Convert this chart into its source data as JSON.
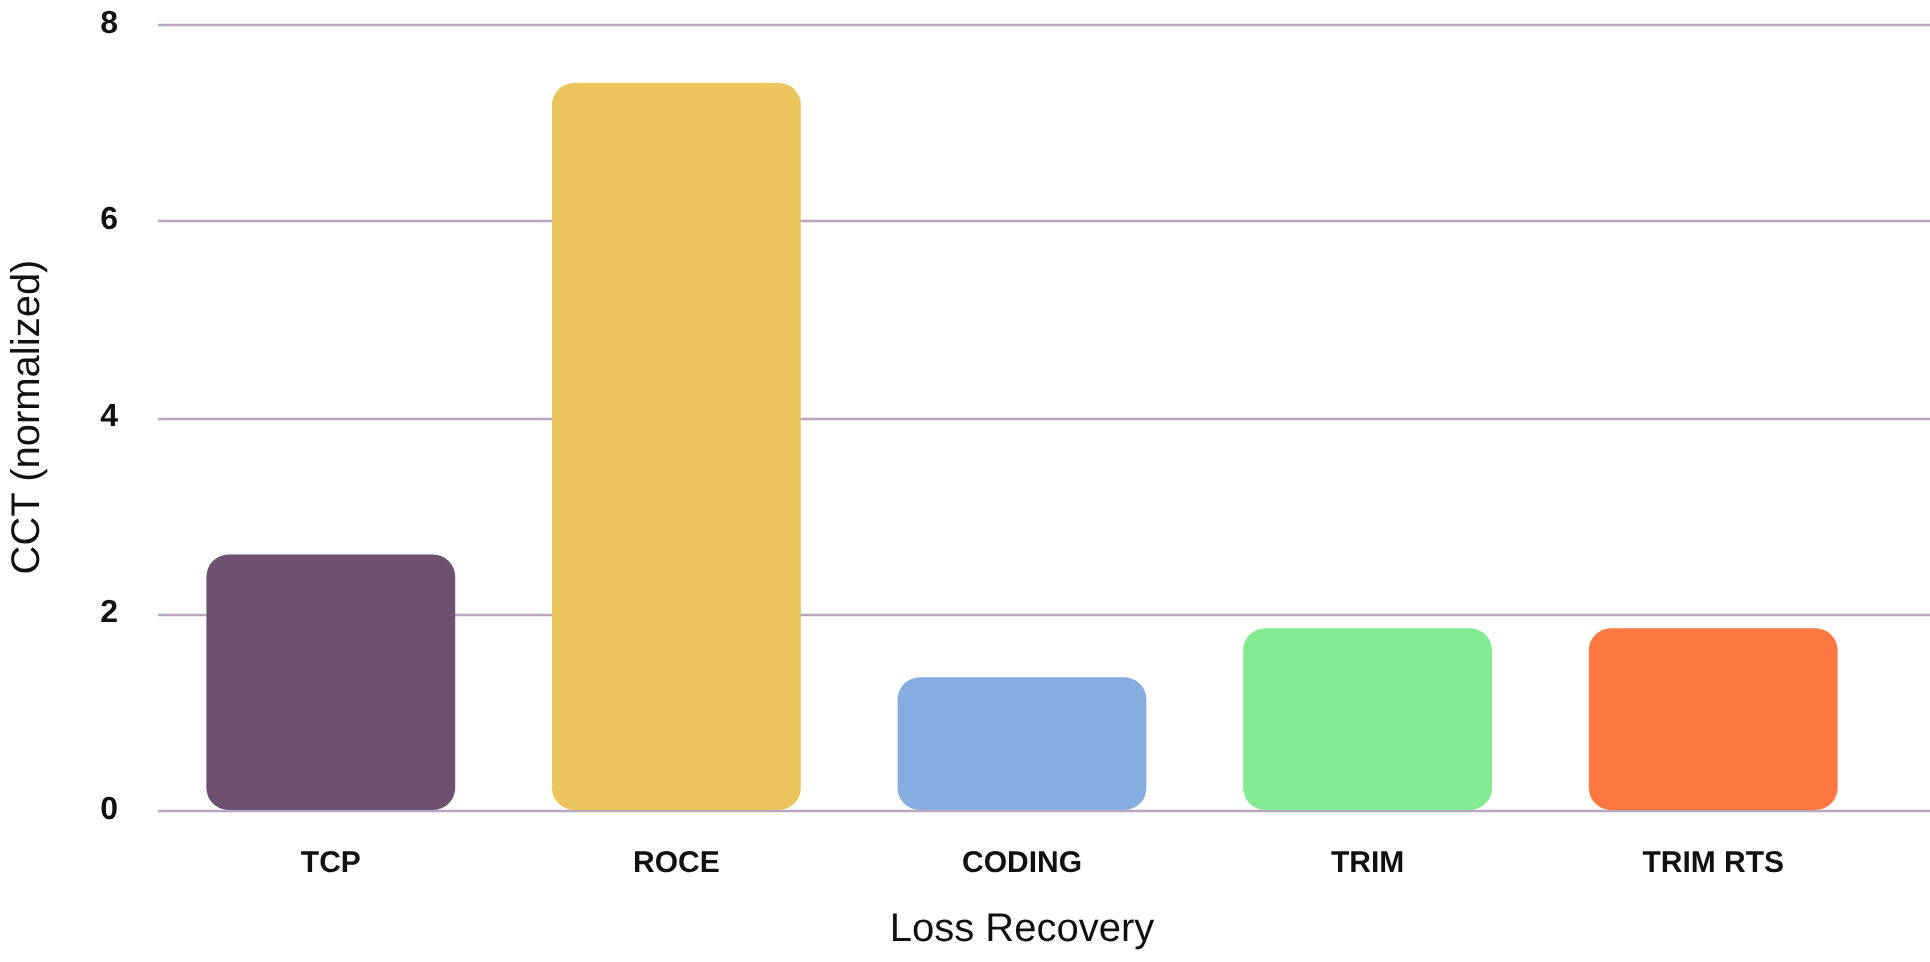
{
  "chart_data": {
    "type": "bar",
    "xlabel": "Loss Recovery",
    "ylabel": "CCT (normalized)",
    "categories": [
      "TCP",
      "ROCE",
      "CODING",
      "TRIM",
      "TRIM RTS"
    ],
    "values": [
      2.6,
      7.4,
      1.35,
      1.85,
      1.85
    ],
    "colors": [
      "#6f5271",
      "#ebc55c",
      "#86ade0",
      "#82ea90",
      "#ff7743"
    ],
    "ylim": [
      0,
      8
    ],
    "yticks": [
      0,
      2,
      4,
      6,
      8
    ],
    "grid": "y"
  }
}
